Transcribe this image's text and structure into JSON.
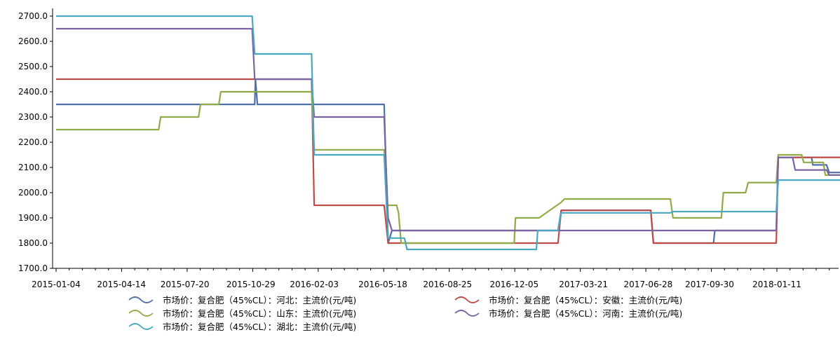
{
  "chart_data": {
    "type": "line",
    "title": "",
    "xlabel": "",
    "ylabel": "",
    "ylim": [
      1700,
      2700
    ],
    "grid": false,
    "legend_placement": "bottom",
    "yticks": [
      "1700.0",
      "1800.0",
      "1900.0",
      "2000.0",
      "2100.0",
      "2200.0",
      "2300.0",
      "2400.0",
      "2500.0",
      "2600.0",
      "2700.0"
    ],
    "xticks": [
      "2015-01-04",
      "2015-04-14",
      "2015-07-20",
      "2015-10-29",
      "2016-02-03",
      "2016-05-18",
      "2016-08-25",
      "2016-12-05",
      "2017-03-21",
      "2017-06-28",
      "2017-09-30",
      "2018-01-11"
    ],
    "xrange": [
      "2015-01-04",
      "2018-04-19"
    ],
    "series": [
      {
        "name": "市场价：复合肥（45%CL）：河北：主流价(元/吨)",
        "color": "#4f6fa8",
        "points": [
          [
            "2015-01-04",
            2350
          ],
          [
            "2015-11-04",
            2350
          ],
          [
            "2015-11-05",
            2450
          ],
          [
            "2015-11-08",
            2350
          ],
          [
            "2016-05-20",
            2350
          ],
          [
            "2016-05-26",
            1800
          ],
          [
            "2016-06-01",
            1850
          ],
          [
            "2017-02-10",
            1850
          ],
          [
            "2017-02-15",
            1930
          ],
          [
            "2017-07-02",
            1930
          ],
          [
            "2017-07-06",
            1800
          ],
          [
            "2017-10-06",
            1800
          ],
          [
            "2017-10-08",
            1850
          ],
          [
            "2018-01-10",
            1850
          ],
          [
            "2018-01-13",
            2140
          ],
          [
            "2018-03-05",
            2140
          ],
          [
            "2018-03-07",
            2110
          ],
          [
            "2018-03-28",
            2110
          ],
          [
            "2018-04-01",
            2080
          ],
          [
            "2018-04-19",
            2080
          ]
        ]
      },
      {
        "name": "市场价：复合肥（45%CL）：安徽：主流价(元/吨)",
        "color": "#bf4b48",
        "points": [
          [
            "2015-01-04",
            2450
          ],
          [
            "2016-01-30",
            2450
          ],
          [
            "2016-02-03",
            1950
          ],
          [
            "2016-05-20",
            1950
          ],
          [
            "2016-05-26",
            1800
          ],
          [
            "2017-02-10",
            1800
          ],
          [
            "2017-02-15",
            1930
          ],
          [
            "2017-07-02",
            1930
          ],
          [
            "2017-07-06",
            1800
          ],
          [
            "2018-01-10",
            1800
          ],
          [
            "2018-01-13",
            2140
          ],
          [
            "2018-04-19",
            2140
          ]
        ]
      },
      {
        "name": "市场价：复合肥（45%CL）：山东：主流价(元/吨)",
        "color": "#8fab48",
        "points": [
          [
            "2015-01-04",
            2250
          ],
          [
            "2015-06-10",
            2250
          ],
          [
            "2015-06-13",
            2300
          ],
          [
            "2015-08-10",
            2300
          ],
          [
            "2015-08-13",
            2350
          ],
          [
            "2015-09-10",
            2350
          ],
          [
            "2015-09-13",
            2400
          ],
          [
            "2016-01-30",
            2400
          ],
          [
            "2016-02-03",
            2170
          ],
          [
            "2016-05-20",
            2170
          ],
          [
            "2016-05-24",
            1950
          ],
          [
            "2016-06-08",
            1950
          ],
          [
            "2016-06-11",
            1920
          ],
          [
            "2016-06-15",
            1800
          ],
          [
            "2016-12-05",
            1800
          ],
          [
            "2016-12-07",
            1900
          ],
          [
            "2017-01-12",
            1900
          ],
          [
            "2017-02-14",
            1960
          ],
          [
            "2017-02-20",
            1975
          ],
          [
            "2017-08-01",
            1975
          ],
          [
            "2017-08-05",
            1900
          ],
          [
            "2017-10-18",
            1900
          ],
          [
            "2017-10-21",
            2000
          ],
          [
            "2017-11-24",
            2000
          ],
          [
            "2017-11-28",
            2040
          ],
          [
            "2018-01-10",
            2040
          ],
          [
            "2018-01-13",
            2150
          ],
          [
            "2018-02-18",
            2150
          ],
          [
            "2018-02-21",
            2120
          ],
          [
            "2018-03-23",
            2120
          ],
          [
            "2018-03-26",
            2070
          ],
          [
            "2018-04-19",
            2070
          ]
        ]
      },
      {
        "name": "市场价：复合肥（45%CL）：河南：主流价(元/吨)",
        "color": "#7b62a0",
        "points": [
          [
            "2015-01-04",
            2650
          ],
          [
            "2015-10-31",
            2650
          ],
          [
            "2015-11-04",
            2450
          ],
          [
            "2016-01-30",
            2450
          ],
          [
            "2016-02-03",
            2300
          ],
          [
            "2016-05-20",
            2300
          ],
          [
            "2016-05-26",
            1900
          ],
          [
            "2016-06-01",
            1850
          ],
          [
            "2017-07-02",
            1850
          ],
          [
            "2017-07-06",
            1850
          ],
          [
            "2018-01-10",
            1850
          ],
          [
            "2018-01-13",
            2140
          ],
          [
            "2018-02-04",
            2140
          ],
          [
            "2018-02-08",
            2090
          ],
          [
            "2018-03-28",
            2090
          ],
          [
            "2018-04-01",
            2070
          ],
          [
            "2018-04-19",
            2070
          ]
        ]
      },
      {
        "name": "市场价：复合肥（45%CL）：湖北：主流价(元/吨)",
        "color": "#4aa7c2",
        "points": [
          [
            "2015-01-04",
            2700
          ],
          [
            "2015-10-31",
            2700
          ],
          [
            "2015-11-04",
            2550
          ],
          [
            "2016-01-30",
            2550
          ],
          [
            "2016-02-03",
            2150
          ],
          [
            "2016-05-20",
            2150
          ],
          [
            "2016-05-26",
            1820
          ],
          [
            "2016-06-20",
            1820
          ],
          [
            "2016-06-24",
            1775
          ],
          [
            "2017-01-08",
            1775
          ],
          [
            "2017-01-10",
            1850
          ],
          [
            "2017-02-10",
            1850
          ],
          [
            "2017-02-15",
            1920
          ],
          [
            "2017-08-01",
            1920
          ],
          [
            "2017-08-05",
            1925
          ],
          [
            "2018-01-10",
            1925
          ],
          [
            "2018-01-13",
            2050
          ],
          [
            "2018-04-19",
            2050
          ]
        ]
      }
    ]
  }
}
